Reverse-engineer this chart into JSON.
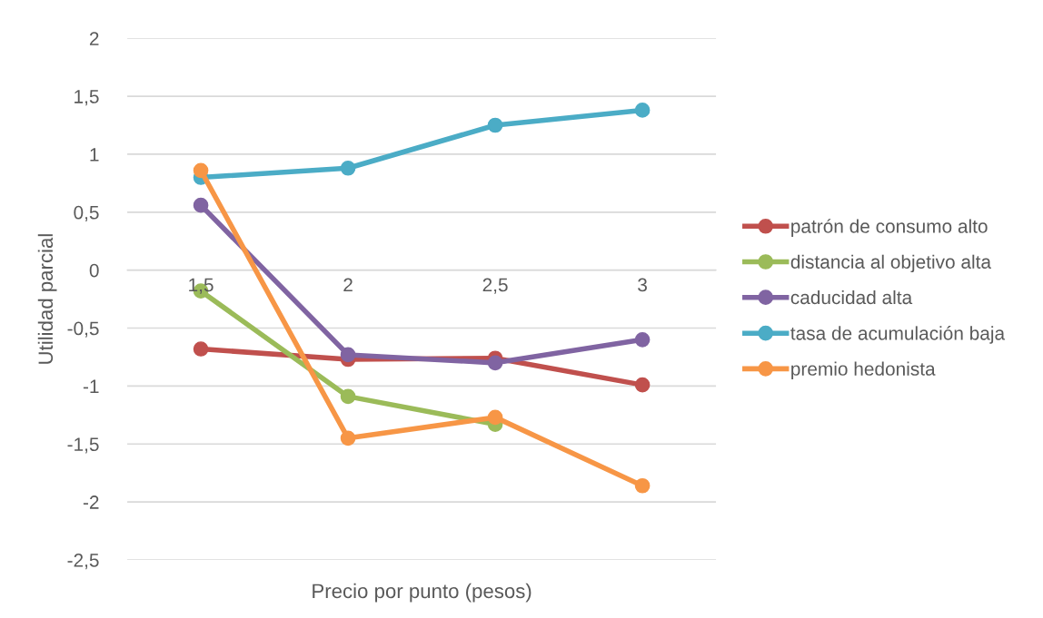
{
  "chart_data": {
    "type": "line",
    "xlabel": "Precio por punto (pesos)",
    "ylabel": "Utilidad parcial",
    "categories": [
      "1,5",
      "2",
      "2,5",
      "3"
    ],
    "series": [
      {
        "name": "patrón de consumo alto",
        "color": "#c0504d",
        "values": [
          -0.68,
          -0.77,
          -0.76,
          -0.99
        ]
      },
      {
        "name": "distancia al objetivo alta",
        "color": "#9bbb59",
        "values": [
          -0.18,
          -1.09,
          -1.33,
          null
        ]
      },
      {
        "name": "caducidad alta",
        "color": "#8064a2",
        "values": [
          0.56,
          -0.73,
          -0.8,
          -0.6
        ]
      },
      {
        "name": "tasa de acumulación baja",
        "color": "#4bacc6",
        "values": [
          0.8,
          0.88,
          1.25,
          1.38
        ]
      },
      {
        "name": "premio hedonista",
        "color": "#f79646",
        "values": [
          0.86,
          -1.45,
          -1.27,
          -1.86
        ]
      }
    ],
    "ylim": [
      -2.5,
      2
    ],
    "yticks": [
      {
        "value": -2.5,
        "label": "-2,5"
      },
      {
        "value": -2,
        "label": "-2"
      },
      {
        "value": -1.5,
        "label": "-1,5"
      },
      {
        "value": -1,
        "label": "-1"
      },
      {
        "value": -0.5,
        "label": "-0,5"
      },
      {
        "value": 0,
        "label": "0"
      },
      {
        "value": 0.5,
        "label": "0,5"
      },
      {
        "value": 1,
        "label": "1"
      },
      {
        "value": 1.5,
        "label": "1,5"
      },
      {
        "value": 2,
        "label": "2"
      }
    ],
    "grid": "y",
    "legend": "right",
    "marker": "circle",
    "line_style": "solid"
  }
}
